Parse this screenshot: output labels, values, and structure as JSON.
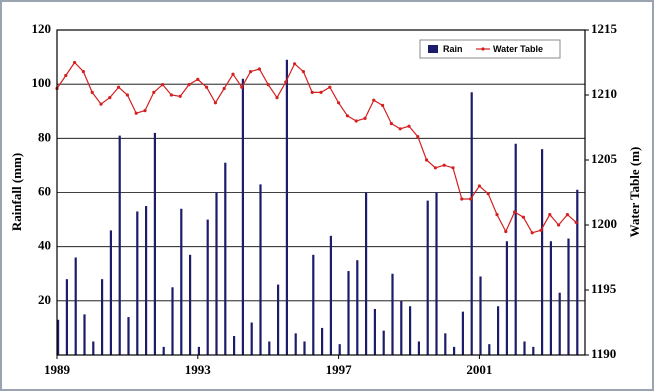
{
  "chart_data": {
    "type": "bar-line",
    "y_label": "Rainfall (mm)",
    "y2_label": "Water Table (m)",
    "x": [
      1989,
      1989.25,
      1989.5,
      1989.75,
      1990,
      1990.25,
      1990.5,
      1990.75,
      1991,
      1991.25,
      1991.5,
      1991.75,
      1992,
      1992.25,
      1992.5,
      1992.75,
      1993,
      1993.25,
      1993.5,
      1993.75,
      1994,
      1994.25,
      1994.5,
      1994.75,
      1995,
      1995.25,
      1995.5,
      1995.75,
      1996,
      1996.25,
      1996.5,
      1996.75,
      1997,
      1997.25,
      1997.5,
      1997.75,
      1998,
      1998.25,
      1998.5,
      1998.75,
      1999,
      1999.25,
      1999.5,
      1999.75,
      2000,
      2000.25,
      2000.5,
      2000.75,
      2001,
      2001.25,
      2001.5,
      2001.75,
      2002,
      2002.25,
      2002.5,
      2002.75,
      2003,
      2003.25,
      2003.5,
      2003.75
    ],
    "series": [
      {
        "name": "Rain",
        "color": "#1c1c6b",
        "kind": "bar",
        "values": [
          13,
          28,
          36,
          15,
          5,
          28,
          46,
          81,
          14,
          53,
          55,
          82,
          3,
          25,
          54,
          37,
          3,
          50,
          60,
          71,
          7,
          102,
          12,
          63,
          5,
          26,
          109,
          8,
          5,
          37,
          10,
          44,
          4,
          31,
          35,
          60,
          17,
          9,
          30,
          20,
          18,
          5,
          57,
          60,
          8,
          3,
          16,
          97,
          29,
          4,
          18,
          42,
          78,
          5,
          3,
          76,
          42,
          23,
          43,
          61
        ]
      },
      {
        "name": "Water Table",
        "color": "#d42020",
        "kind": "line",
        "axis": "y2",
        "values": [
          1210.5,
          1211.5,
          1212.5,
          1211.8,
          1210.2,
          1209.3,
          1209.8,
          1210.6,
          1210.0,
          1208.6,
          1208.8,
          1210.2,
          1210.8,
          1210.0,
          1209.9,
          1210.8,
          1211.2,
          1210.6,
          1209.4,
          1210.5,
          1211.6,
          1210.6,
          1211.8,
          1212.0,
          1210.8,
          1209.8,
          1211.0,
          1212.4,
          1211.8,
          1210.2,
          1210.2,
          1210.6,
          1209.4,
          1208.4,
          1208.0,
          1208.2,
          1209.6,
          1209.2,
          1207.8,
          1207.4,
          1207.6,
          1206.8,
          1205.0,
          1204.4,
          1204.6,
          1204.4,
          1202.0,
          1202.0,
          1203.0,
          1202.4,
          1200.8,
          1199.5,
          1201.0,
          1200.6,
          1199.4,
          1199.6,
          1200.8,
          1200.0,
          1200.8,
          1200.2
        ]
      }
    ],
    "xlim": [
      1989,
      2004
    ],
    "xticks": [
      1989,
      1993,
      1997,
      2001
    ],
    "ylim": [
      0,
      120
    ],
    "yticks": [
      20,
      40,
      60,
      80,
      100,
      120
    ],
    "y2lim": [
      1190,
      1215
    ],
    "y2ticks": [
      1190,
      1195,
      1200,
      1205,
      1210,
      1215
    ],
    "grid": true,
    "legend": "upper right"
  }
}
